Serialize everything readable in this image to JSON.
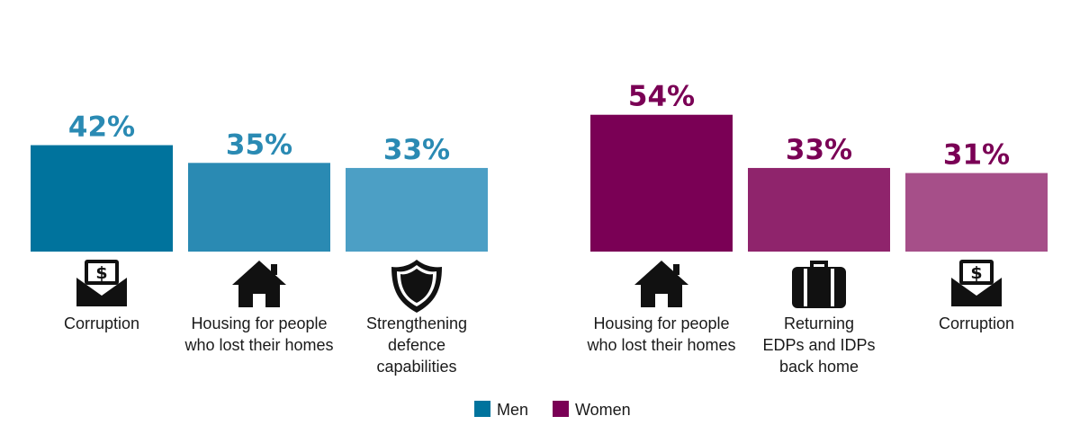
{
  "chart_data": [
    {
      "type": "bar",
      "series_name": "Men",
      "categories": [
        "Corruption",
        "Housing for people who lost their homes",
        "Strengthening defence capabilities"
      ],
      "category_lines": [
        [
          "Corruption"
        ],
        [
          "Housing for people",
          "who lost their homes"
        ],
        [
          "Strengthening",
          "defence",
          "capabilities"
        ]
      ],
      "values": [
        42,
        35,
        33
      ],
      "value_labels": [
        "42%",
        "35%",
        "33%"
      ],
      "icons": [
        "money-envelope-icon",
        "house-icon",
        "shield-icon"
      ],
      "colors": [
        "#00739d",
        "#2a8ab3",
        "#4c9fc5"
      ],
      "label_color": "#2a8ab3"
    },
    {
      "type": "bar",
      "series_name": "Women",
      "categories": [
        "Housing for people who lost their homes",
        "Returning EDPs and IDPs back home",
        "Corruption"
      ],
      "category_lines": [
        [
          "Housing for people",
          "who lost their homes"
        ],
        [
          "Returning",
          "EDPs and IDPs",
          "back home"
        ],
        [
          "Corruption"
        ]
      ],
      "values": [
        54,
        33,
        31
      ],
      "value_labels": [
        "54%",
        "33%",
        "31%"
      ],
      "icons": [
        "house-icon",
        "suitcase-icon",
        "money-envelope-icon"
      ],
      "colors": [
        "#7a0055",
        "#8f246c",
        "#a64f89"
      ],
      "label_color": "#7a0055"
    }
  ],
  "legend": [
    {
      "label": "Men",
      "color": "#00739d"
    },
    {
      "label": "Women",
      "color": "#7a0055"
    }
  ]
}
